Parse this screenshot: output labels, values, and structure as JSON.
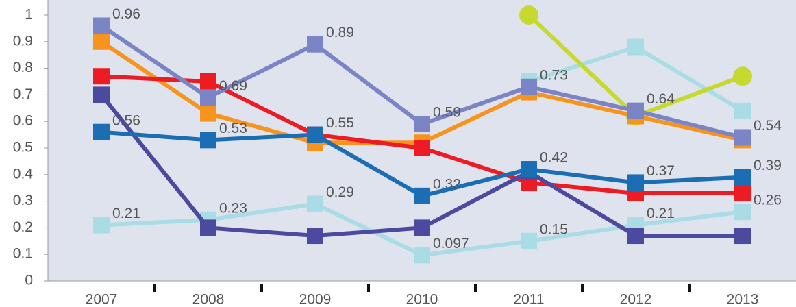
{
  "chart_data": {
    "type": "line",
    "categories": [
      "2007",
      "2008",
      "2009",
      "2010",
      "2011",
      "2012",
      "2013"
    ],
    "ylim": [
      0,
      1
    ],
    "yticks": [
      0,
      0.1,
      0.2,
      0.3,
      0.4,
      0.5,
      0.6,
      0.7,
      0.8,
      0.9,
      1
    ],
    "series": [
      {
        "color": "#a9dce4",
        "marker": "square",
        "values": [
          0.21,
          0.23,
          0.29,
          0.097,
          0.15,
          0.21,
          0.26
        ]
      },
      {
        "color": "#a9dce4",
        "marker": "square",
        "values": [
          null,
          null,
          null,
          null,
          0.75,
          0.88,
          0.64
        ]
      },
      {
        "color": "#c6d92e",
        "marker": "circle",
        "values": [
          null,
          null,
          null,
          null,
          1,
          0.62,
          0.77
        ]
      },
      {
        "color": "#f7941d",
        "marker": "square",
        "values": [
          0.9,
          0.63,
          0.52,
          0.52,
          0.71,
          0.62,
          0.53
        ]
      },
      {
        "color": "#ed1c24",
        "marker": "square",
        "values": [
          0.77,
          0.75,
          0.55,
          0.5,
          0.37,
          0.33,
          0.33
        ]
      },
      {
        "color": "#4b4a9e",
        "marker": "square",
        "values": [
          0.7,
          0.2,
          0.17,
          0.2,
          0.41,
          0.17,
          0.17
        ]
      },
      {
        "color": "#1b6eb4",
        "marker": "square",
        "values": [
          0.56,
          0.53,
          0.55,
          0.32,
          0.42,
          0.37,
          0.39
        ]
      },
      {
        "color": "#7b84c5",
        "marker": "square",
        "values": [
          0.96,
          0.69,
          0.89,
          0.59,
          0.73,
          0.64,
          0.54
        ]
      }
    ]
  }
}
